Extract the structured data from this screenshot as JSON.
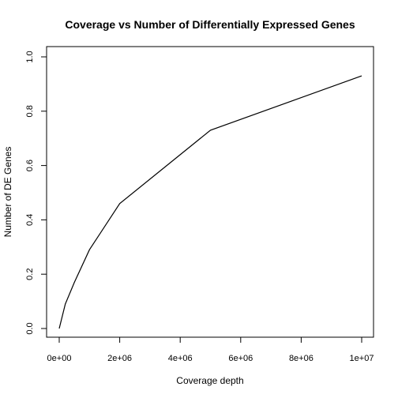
{
  "chart_data": {
    "type": "line",
    "title": "Coverage vs Number of Differentially Expressed Genes",
    "xlabel": "Coverage depth",
    "ylabel": "Number of DE Genes",
    "xlim": [
      0,
      10000000
    ],
    "ylim": [
      0,
      1.0
    ],
    "grid": false,
    "x_ticks": [
      0,
      2000000,
      4000000,
      6000000,
      8000000,
      10000000
    ],
    "x_tick_labels": [
      "0e+00",
      "2e+06",
      "4e+06",
      "6e+06",
      "8e+06",
      "1e+07"
    ],
    "y_ticks": [
      0,
      0.2,
      0.4,
      0.6,
      0.8,
      1.0
    ],
    "y_tick_labels": [
      "0.0",
      "0.2",
      "0.4",
      "0.6",
      "0.8",
      "1.0"
    ],
    "series": [
      {
        "color": "#000000",
        "x": [
          0,
          200000,
          500000,
          1000000,
          2000000,
          5000000,
          10000000
        ],
        "y": [
          0.0,
          0.09,
          0.17,
          0.29,
          0.46,
          0.73,
          0.93
        ]
      }
    ]
  }
}
